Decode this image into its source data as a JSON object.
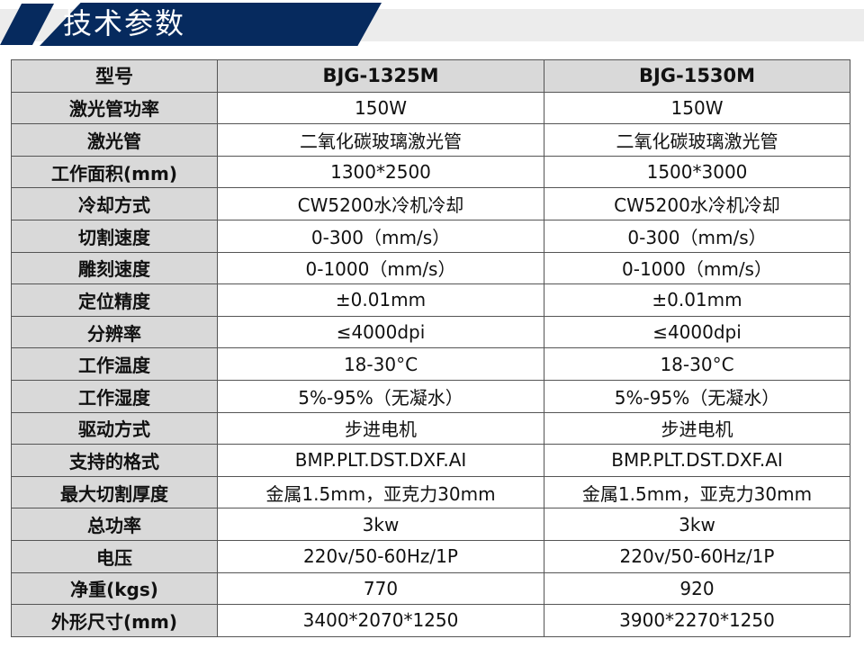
{
  "title": "技术参数",
  "colors": {
    "banner": "#062a5e",
    "label_bg": "#d9d9d9"
  },
  "header": [
    "型号",
    "BJG-1325M",
    "BJG-1530M"
  ],
  "rows": [
    [
      "激光管功率",
      "150W",
      "150W"
    ],
    [
      "激光管",
      "二氧化碳玻璃激光管",
      "二氧化碳玻璃激光管"
    ],
    [
      "工作面积(mm)",
      "1300*2500",
      "1500*3000"
    ],
    [
      "冷却方式",
      "CW5200水冷机冷却",
      "CW5200水冷机冷却"
    ],
    [
      "切割速度",
      "0-300（mm/s）",
      "0-300（mm/s）"
    ],
    [
      "雕刻速度",
      "0-1000（mm/s）",
      "0-1000（mm/s）"
    ],
    [
      "定位精度",
      "±0.01mm",
      "±0.01mm"
    ],
    [
      "分辨率",
      "≤4000dpi",
      "≤4000dpi"
    ],
    [
      "工作温度",
      "18-30°C",
      "18-30°C"
    ],
    [
      "工作湿度",
      "5%-95%（无凝水）",
      "5%-95%（无凝水）"
    ],
    [
      "驱动方式",
      "步进电机",
      "步进电机"
    ],
    [
      "支持的格式",
      "BMP.PLT.DST.DXF.AI",
      "BMP.PLT.DST.DXF.AI"
    ],
    [
      "最大切割厚度",
      "金属1.5mm，亚克力30mm",
      "金属1.5mm，亚克力30mm"
    ],
    [
      "总功率",
      "3kw",
      "3kw"
    ],
    [
      "电压",
      "220v/50-60Hz/1P",
      "220v/50-60Hz/1P"
    ],
    [
      "净重(kgs)",
      "770",
      "920"
    ],
    [
      "外形尺寸(mm)",
      "3400*2070*1250",
      "3900*2270*1250"
    ]
  ]
}
